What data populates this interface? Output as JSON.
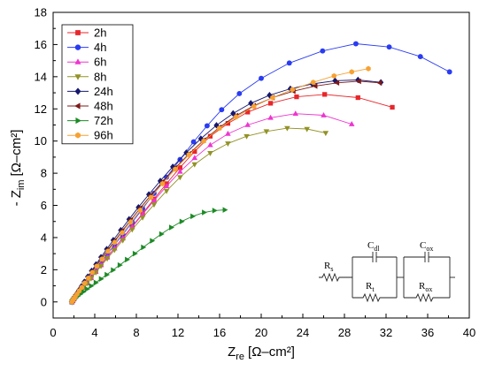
{
  "chart_data": {
    "type": "line",
    "xlabel": {
      "main": "Z",
      "sub": "re",
      "unit": "[Ω–cm²]"
    },
    "ylabel": {
      "main": "- Z",
      "sub": "im",
      "unit": "[Ω–cm²]"
    },
    "xlim": [
      0,
      40
    ],
    "ylim": [
      -1,
      18
    ],
    "xticks": [
      0,
      4,
      8,
      12,
      16,
      20,
      24,
      28,
      32,
      36,
      40
    ],
    "yticks": [
      0,
      2,
      4,
      6,
      8,
      10,
      12,
      14,
      16,
      18
    ],
    "grid": false,
    "legend_position": "top-left",
    "series": [
      {
        "name": "2h",
        "color": "#e8262a",
        "marker": "square",
        "x": [
          1.8,
          1.9,
          2.0,
          2.15,
          2.35,
          2.6,
          2.9,
          3.25,
          3.65,
          4.1,
          4.6,
          5.2,
          5.9,
          6.7,
          7.6,
          8.6,
          9.7,
          10.9,
          12.2,
          13.6,
          15.1,
          16.8,
          18.7,
          20.9,
          23.4,
          26.1,
          29.3,
          32.6
        ],
        "y": [
          0.0,
          0.1,
          0.2,
          0.33,
          0.48,
          0.67,
          0.9,
          1.18,
          1.5,
          1.88,
          2.3,
          2.78,
          3.35,
          3.98,
          4.7,
          5.5,
          6.4,
          7.35,
          8.35,
          9.35,
          10.3,
          11.1,
          11.8,
          12.35,
          12.75,
          12.9,
          12.7,
          12.1
        ]
      },
      {
        "name": "4h",
        "color": "#2a3cf2",
        "marker": "circle",
        "x": [
          1.8,
          1.9,
          2.0,
          2.15,
          2.35,
          2.6,
          2.9,
          3.25,
          3.65,
          4.1,
          4.6,
          5.2,
          5.9,
          6.7,
          7.6,
          8.6,
          9.7,
          10.9,
          12.2,
          13.5,
          14.8,
          16.2,
          17.9,
          20.0,
          22.7,
          25.9,
          29.1,
          32.3,
          35.3,
          38.1
        ],
        "y": [
          0.0,
          0.1,
          0.2,
          0.35,
          0.5,
          0.7,
          0.95,
          1.25,
          1.6,
          2.0,
          2.45,
          2.95,
          3.55,
          4.2,
          4.95,
          5.8,
          6.75,
          7.75,
          8.85,
          9.95,
          10.95,
          11.95,
          12.95,
          13.9,
          14.85,
          15.6,
          16.05,
          15.85,
          15.25,
          14.3
        ]
      },
      {
        "name": "6h",
        "color": "#ee35cf",
        "marker": "triangle-up",
        "x": [
          1.8,
          1.9,
          2.0,
          2.15,
          2.35,
          2.6,
          2.9,
          3.25,
          3.65,
          4.1,
          4.6,
          5.2,
          5.9,
          6.7,
          7.6,
          8.6,
          9.7,
          10.9,
          12.2,
          13.6,
          15.1,
          16.8,
          18.7,
          20.9,
          23.3,
          26.0,
          28.7
        ],
        "y": [
          0.0,
          0.1,
          0.2,
          0.33,
          0.48,
          0.67,
          0.9,
          1.18,
          1.5,
          1.88,
          2.3,
          2.78,
          3.33,
          3.95,
          4.65,
          5.45,
          6.3,
          7.2,
          8.1,
          8.95,
          9.75,
          10.45,
          11.0,
          11.45,
          11.7,
          11.6,
          11.05
        ]
      },
      {
        "name": "8h",
        "color": "#929226",
        "marker": "triangle-down",
        "x": [
          1.8,
          1.9,
          2.0,
          2.15,
          2.35,
          2.6,
          2.9,
          3.25,
          3.65,
          4.1,
          4.6,
          5.2,
          5.9,
          6.7,
          7.6,
          8.6,
          9.7,
          10.9,
          12.2,
          13.6,
          15.1,
          16.8,
          18.6,
          20.5,
          22.5,
          24.4,
          26.2
        ],
        "y": [
          0.0,
          0.1,
          0.2,
          0.33,
          0.47,
          0.65,
          0.88,
          1.15,
          1.46,
          1.83,
          2.23,
          2.7,
          3.23,
          3.83,
          4.5,
          5.25,
          6.05,
          6.9,
          7.75,
          8.55,
          9.25,
          9.85,
          10.3,
          10.6,
          10.8,
          10.75,
          10.5
        ]
      },
      {
        "name": "24h",
        "color": "#15186e",
        "marker": "diamond",
        "x": [
          1.8,
          1.9,
          2.0,
          2.12,
          2.28,
          2.48,
          2.72,
          3.0,
          3.33,
          3.7,
          4.12,
          4.6,
          5.15,
          5.78,
          6.5,
          7.3,
          8.2,
          9.2,
          10.3,
          11.5,
          12.8,
          14.2,
          15.7,
          17.3,
          19.0,
          20.8,
          22.8,
          24.9,
          27.1,
          29.3,
          31.5
        ],
        "y": [
          0.0,
          0.1,
          0.22,
          0.36,
          0.53,
          0.73,
          0.97,
          1.25,
          1.57,
          1.93,
          2.33,
          2.78,
          3.28,
          3.84,
          4.46,
          5.14,
          5.88,
          6.68,
          7.52,
          8.4,
          9.28,
          10.15,
          10.98,
          11.72,
          12.35,
          12.85,
          13.25,
          13.55,
          13.75,
          13.8,
          13.65
        ]
      },
      {
        "name": "48h",
        "color": "#7d1a1a",
        "marker": "triangle-left",
        "x": [
          1.8,
          1.9,
          2.0,
          2.13,
          2.3,
          2.5,
          2.75,
          3.04,
          3.38,
          3.76,
          4.2,
          4.7,
          5.27,
          5.92,
          6.65,
          7.47,
          8.38,
          9.4,
          10.52,
          11.74,
          13.05,
          14.47,
          15.98,
          17.6,
          19.3,
          21.1,
          23.1,
          25.2,
          27.3,
          29.4,
          31.4
        ],
        "y": [
          0.0,
          0.1,
          0.21,
          0.35,
          0.51,
          0.71,
          0.94,
          1.22,
          1.53,
          1.89,
          2.29,
          2.74,
          3.24,
          3.8,
          4.42,
          5.1,
          5.84,
          6.63,
          7.47,
          8.33,
          9.2,
          10.05,
          10.85,
          11.58,
          12.2,
          12.7,
          13.1,
          13.42,
          13.62,
          13.72,
          13.62
        ]
      },
      {
        "name": "72h",
        "color": "#1d8a26",
        "marker": "triangle-right",
        "x": [
          1.8,
          1.9,
          2.0,
          2.15,
          2.35,
          2.6,
          2.9,
          3.25,
          3.65,
          4.1,
          4.6,
          5.15,
          5.75,
          6.4,
          7.1,
          7.85,
          8.65,
          9.5,
          10.4,
          11.35,
          12.35,
          13.4,
          14.5,
          15.5,
          16.5
        ],
        "y": [
          0.0,
          0.07,
          0.14,
          0.24,
          0.35,
          0.48,
          0.63,
          0.8,
          0.99,
          1.2,
          1.43,
          1.69,
          1.98,
          2.29,
          2.63,
          3.0,
          3.39,
          3.8,
          4.22,
          4.63,
          5.0,
          5.32,
          5.56,
          5.68,
          5.72
        ]
      },
      {
        "name": "96h",
        "color": "#f6a232",
        "marker": "hexagon",
        "x": [
          1.8,
          1.9,
          2.0,
          2.13,
          2.3,
          2.5,
          2.75,
          3.04,
          3.38,
          3.76,
          4.2,
          4.7,
          5.27,
          5.92,
          6.65,
          7.47,
          8.38,
          9.4,
          10.52,
          11.74,
          13.05,
          14.47,
          15.98,
          17.6,
          19.3,
          21.1,
          23.0,
          25.0,
          27.0,
          28.7,
          30.3
        ],
        "y": [
          0.0,
          0.1,
          0.2,
          0.33,
          0.49,
          0.68,
          0.9,
          1.17,
          1.48,
          1.83,
          2.22,
          2.66,
          3.15,
          3.7,
          4.3,
          4.97,
          5.7,
          6.5,
          7.35,
          8.25,
          9.15,
          10.0,
          10.8,
          11.5,
          12.15,
          12.7,
          13.2,
          13.65,
          14.05,
          14.3,
          14.5
        ]
      }
    ]
  },
  "inset_circuit": {
    "rs": {
      "main": "R",
      "sub": "s"
    },
    "cdl": {
      "main": "C",
      "sub": "dl"
    },
    "rt": {
      "main": "R",
      "sub": "t"
    },
    "cox": {
      "main": "C",
      "sub": "ox"
    },
    "rox": {
      "main": "R",
      "sub": "ox"
    }
  }
}
